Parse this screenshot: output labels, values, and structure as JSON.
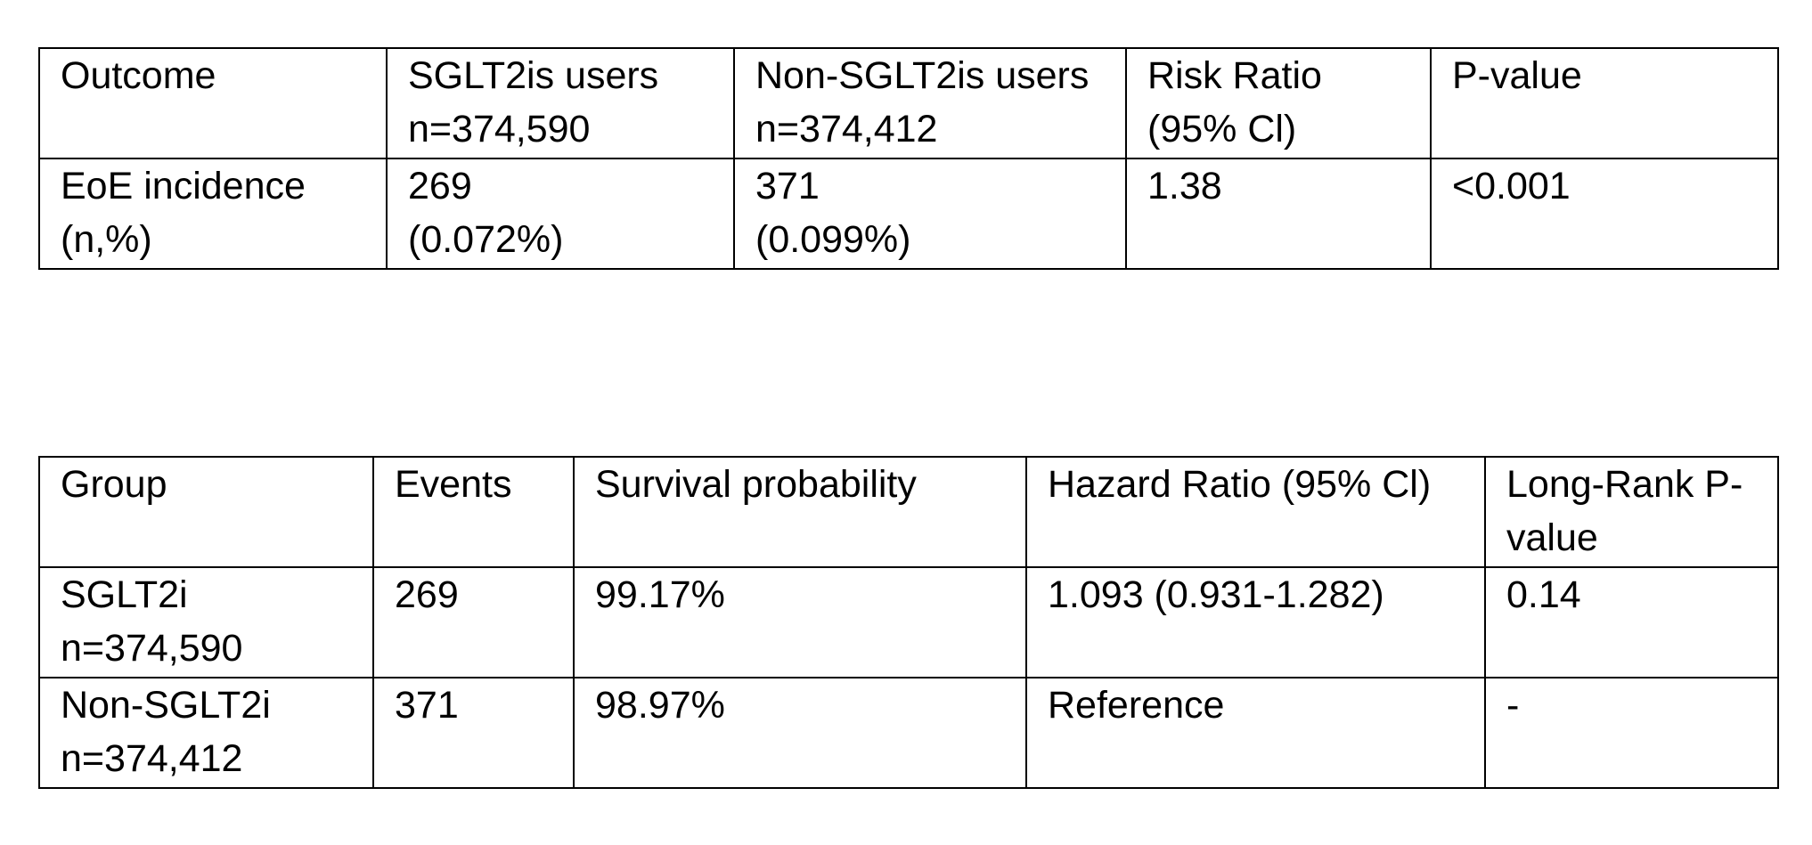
{
  "table1": {
    "rows": [
      [
        [
          "Outcome"
        ],
        [
          "SGLT2is users",
          "n=374,590"
        ],
        [
          "Non-SGLT2is users",
          "n=374,412"
        ],
        [
          "Risk Ratio",
          "(95% Cl)"
        ],
        [
          "P-value"
        ]
      ],
      [
        [
          "EoE incidence",
          "(n,%)"
        ],
        [
          "269",
          "(0.072%)"
        ],
        [
          "371",
          "(0.099%)"
        ],
        [
          "1.38"
        ],
        [
          "<0.001"
        ]
      ]
    ]
  },
  "table2": {
    "rows": [
      [
        [
          "Group"
        ],
        [
          "Events"
        ],
        [
          "Survival probability"
        ],
        [
          "Hazard Ratio (95% Cl)"
        ],
        [
          "Long-Rank P-",
          "value"
        ]
      ],
      [
        [
          "SGLT2i",
          "n=374,590"
        ],
        [
          "269"
        ],
        [
          "99.17%"
        ],
        [
          "1.093 (0.931-1.282)"
        ],
        [
          "0.14"
        ]
      ],
      [
        [
          "Non-SGLT2i",
          "n=374,412"
        ],
        [
          "371"
        ],
        [
          "98.97%"
        ],
        [
          "Reference"
        ],
        [
          "-"
        ]
      ]
    ]
  }
}
